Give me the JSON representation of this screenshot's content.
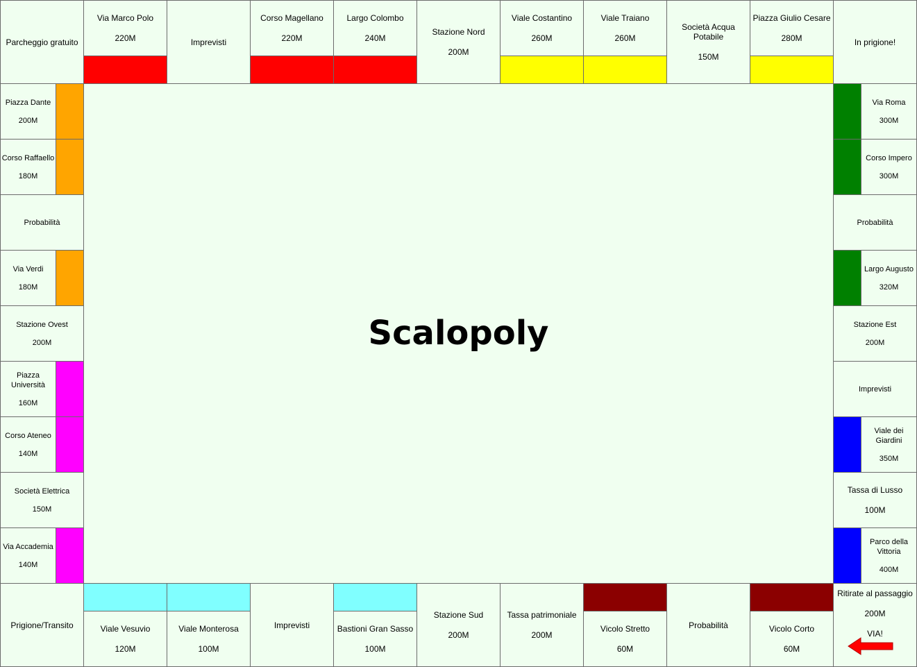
{
  "board": {
    "title": "Scalopoly",
    "colors": {
      "red": "#ff0000",
      "yellow": "#ffff00",
      "orange": "#ffa500",
      "magenta": "#ff00ff",
      "green": "#008000",
      "blue": "#0000ff",
      "cyan": "#80ffff",
      "maroon": "#8b0000",
      "cell_bg": "#f0fff0"
    },
    "corners": {
      "top_left": "Parcheggio gratuito",
      "top_right": "In prigione!",
      "bottom_left": "Prigione/Transito",
      "bottom_right": {
        "line1": "Ritirate al passaggio",
        "line2": "200M",
        "line3": "VIA!"
      }
    },
    "top": [
      {
        "name": "Via Marco Polo",
        "price": "220M",
        "color": "red"
      },
      {
        "name": "Imprevisti",
        "price": ""
      },
      {
        "name": "Corso Magellano",
        "price": "220M",
        "color": "red"
      },
      {
        "name": "Largo Colombo",
        "price": "240M",
        "color": "red"
      },
      {
        "name": "Stazione Nord",
        "price": "200M"
      },
      {
        "name": "Viale Costantino",
        "price": "260M",
        "color": "yellow"
      },
      {
        "name": "Viale Traiano",
        "price": "260M",
        "color": "yellow"
      },
      {
        "name": "Società Acqua Potabile",
        "price": "150M"
      },
      {
        "name": "Piazza Giulio Cesare",
        "price": "280M",
        "color": "yellow"
      }
    ],
    "left": [
      {
        "name": "Piazza Dante",
        "price": "200M",
        "color": "orange"
      },
      {
        "name": "Corso Raffaello",
        "price": "180M",
        "color": "orange"
      },
      {
        "name": "Probabilità",
        "price": ""
      },
      {
        "name": "Via Verdi",
        "price": "180M",
        "color": "orange"
      },
      {
        "name": "Stazione Ovest",
        "price": "200M"
      },
      {
        "name": "Piazza Università",
        "price": "160M",
        "color": "magenta"
      },
      {
        "name": "Corso Ateneo",
        "price": "140M",
        "color": "magenta"
      },
      {
        "name": "Società Elettrica",
        "price": "150M"
      },
      {
        "name": "Via Accademia",
        "price": "140M",
        "color": "magenta"
      }
    ],
    "right": [
      {
        "name": "Via Roma",
        "price": "300M",
        "color": "green"
      },
      {
        "name": "Corso Impero",
        "price": "300M",
        "color": "green"
      },
      {
        "name": "Probabilità",
        "price": ""
      },
      {
        "name": "Largo Augusto",
        "price": "320M",
        "color": "green"
      },
      {
        "name": "Stazione Est",
        "price": "200M"
      },
      {
        "name": "Imprevisti",
        "price": ""
      },
      {
        "name": "Viale dei Giardini",
        "price": "350M",
        "color": "blue"
      },
      {
        "name": "Tassa di Lusso",
        "price": "100M"
      },
      {
        "name": "Parco della Vittoria",
        "price": "400M",
        "color": "blue"
      }
    ],
    "bottom": [
      {
        "name": "Viale Vesuvio",
        "price": "120M",
        "color": "cyan"
      },
      {
        "name": "Viale Monterosa",
        "price": "100M",
        "color": "cyan"
      },
      {
        "name": "Imprevisti",
        "price": ""
      },
      {
        "name": "Bastioni Gran Sasso",
        "price": "100M",
        "color": "cyan"
      },
      {
        "name": "Stazione Sud",
        "price": "200M"
      },
      {
        "name": "Tassa patrimoniale",
        "price": "200M"
      },
      {
        "name": "Vicolo Stretto",
        "price": "60M",
        "color": "maroon"
      },
      {
        "name": "Probabilità",
        "price": ""
      },
      {
        "name": "Vicolo Corto",
        "price": "60M",
        "color": "maroon"
      }
    ]
  }
}
